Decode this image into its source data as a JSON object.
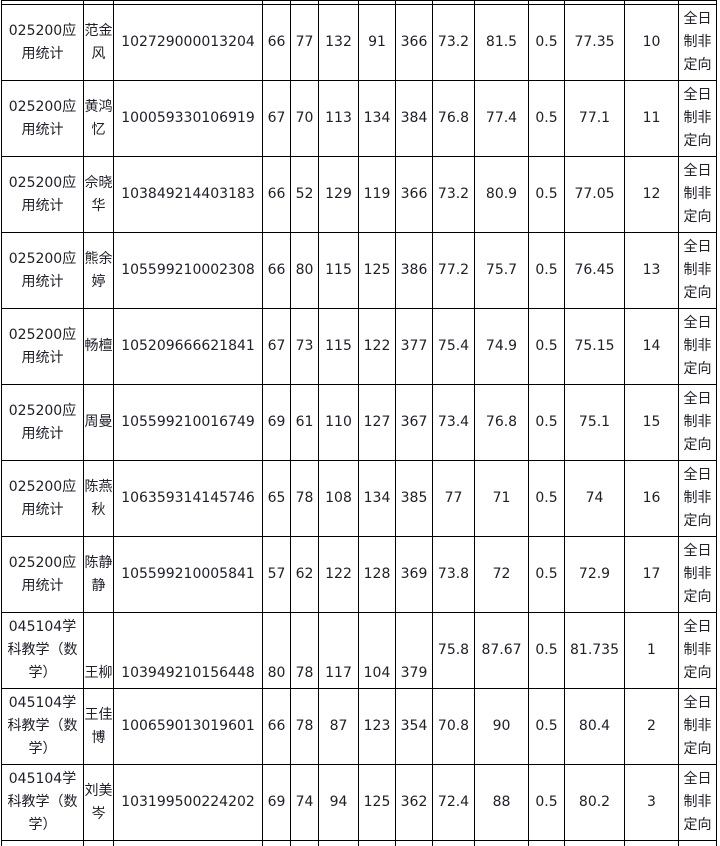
{
  "table": {
    "columns": [
      "program",
      "name",
      "exam_no",
      "score1",
      "score2",
      "score3",
      "score4",
      "total",
      "ratio1",
      "ratio2",
      "weight",
      "final_score",
      "rank",
      "study_mode"
    ],
    "rows": [
      [
        "025200应用统计",
        "范金风",
        "102729000013204",
        "66",
        "77",
        "132",
        "91",
        "366",
        "73.2",
        "81.5",
        "0.5",
        "77.35",
        "10",
        "全日制非定向"
      ],
      [
        "025200应用统计",
        "黄鸿忆",
        "100059330106919",
        "67",
        "70",
        "113",
        "134",
        "384",
        "76.8",
        "77.4",
        "0.5",
        "77.1",
        "11",
        "全日制非定向"
      ],
      [
        "025200应用统计",
        "佘晓华",
        "103849214403183",
        "66",
        "52",
        "129",
        "119",
        "366",
        "73.2",
        "80.9",
        "0.5",
        "77.05",
        "12",
        "全日制非定向"
      ],
      [
        "025200应用统计",
        "熊余婷",
        "105599210002308",
        "66",
        "80",
        "115",
        "125",
        "386",
        "77.2",
        "75.7",
        "0.5",
        "76.45",
        "13",
        "全日制非定向"
      ],
      [
        "025200应用统计",
        "畅檀",
        "105209666621841",
        "67",
        "73",
        "115",
        "122",
        "377",
        "75.4",
        "74.9",
        "0.5",
        "75.15",
        "14",
        "全日制非定向"
      ],
      [
        "025200应用统计",
        "周曼",
        "105599210016749",
        "69",
        "61",
        "110",
        "127",
        "367",
        "73.4",
        "76.8",
        "0.5",
        "75.1",
        "15",
        "全日制非定向"
      ],
      [
        "025200应用统计",
        "陈燕秋",
        "106359314145746",
        "65",
        "78",
        "108",
        "134",
        "385",
        "77",
        "71",
        "0.5",
        "74",
        "16",
        "全日制非定向"
      ],
      [
        "025200应用统计",
        "陈静静",
        "105599210005841",
        "57",
        "62",
        "122",
        "128",
        "369",
        "73.8",
        "72",
        "0.5",
        "72.9",
        "17",
        "全日制非定向"
      ],
      [
        "045104学科教学（数学）",
        "王柳",
        "103949210156448",
        "80",
        "78",
        "117",
        "104",
        "379",
        "75.8",
        "87.67",
        "0.5",
        "81.735",
        "1",
        "全日制非定向"
      ],
      [
        "045104学科教学（数学）",
        "王佳博",
        "100659013019601",
        "66",
        "78",
        "87",
        "123",
        "354",
        "70.8",
        "90",
        "0.5",
        "80.4",
        "2",
        "全日制非定向"
      ],
      [
        "045104学科教学（数学）",
        "刘美岑",
        "103199500224202",
        "69",
        "74",
        "94",
        "125",
        "362",
        "72.4",
        "88",
        "0.5",
        "80.2",
        "3",
        "全日制非定向"
      ]
    ]
  },
  "colors": {
    "border": "#000000",
    "text": "#20202b",
    "background": "#ffffff"
  }
}
